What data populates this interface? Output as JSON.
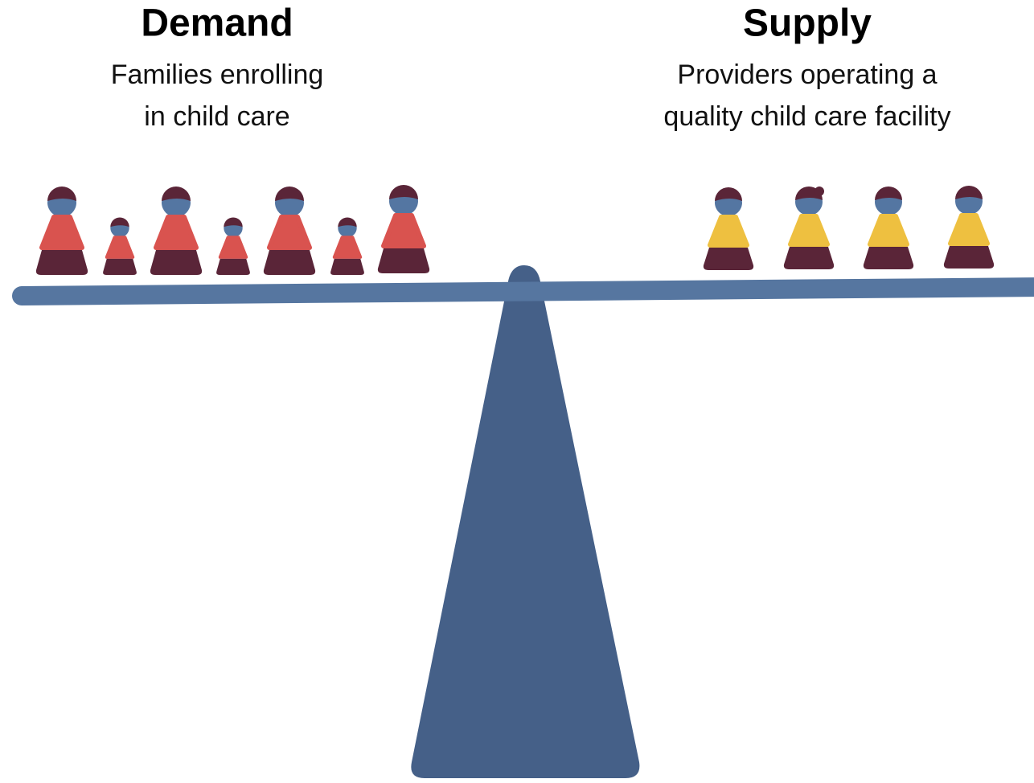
{
  "demand": {
    "title": "Demand",
    "subtitle": [
      "Families enrolling",
      "in child care"
    ]
  },
  "supply": {
    "title": "Supply",
    "subtitle": [
      "Providers operating a",
      "quality child care facility"
    ]
  }
}
